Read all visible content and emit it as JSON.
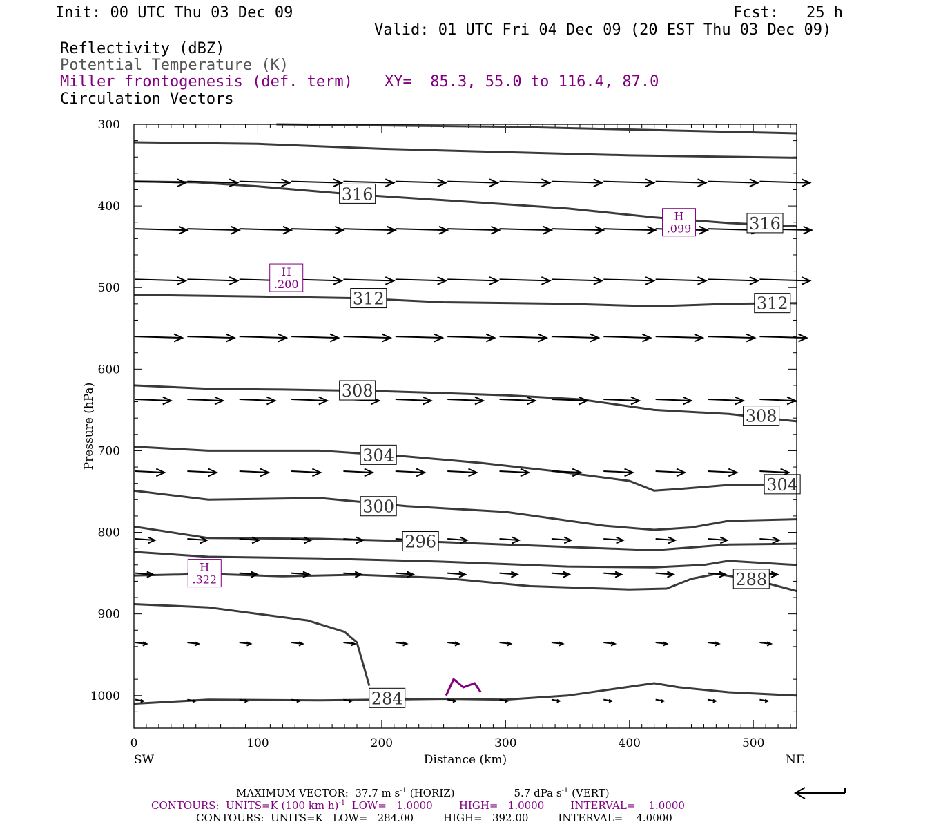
{
  "header": {
    "init": "Init: 00 UTC Thu 03 Dec 09",
    "fcst": "Fcst:   25 h",
    "valid": "Valid: 01 UTC Fri 04 Dec 09 (20 EST Thu 03 Dec 09)",
    "field1": "Reflectivity (dBZ)",
    "field2": "Potential Temperature (K)",
    "field3": "Miller frontogenesis (def. term)",
    "xy": "XY=  85.3, 55.0 to 116.4, 87.0",
    "field4": "Circulation Vectors"
  },
  "colors": {
    "theta": "#3a3a3a",
    "fronto": "#800080",
    "vectors": "#000000",
    "axis": "#000000"
  },
  "chart_data": {
    "type": "cross-section",
    "xlabel": "Distance (km)",
    "ylabel": "Pressure (hPa)",
    "xlim": [
      0,
      535
    ],
    "ylim": [
      1040,
      300
    ],
    "x_ticks": [
      0,
      100,
      200,
      300,
      400,
      500
    ],
    "y_ticks": [
      300,
      400,
      500,
      600,
      700,
      800,
      900,
      1000
    ],
    "x_end_labels": {
      "left": "SW",
      "right": "NE"
    },
    "theta_series": [
      {
        "labels": [],
        "points": [
          [
            115,
            300
          ],
          [
            300,
            303
          ],
          [
            535,
            311
          ]
        ]
      },
      {
        "labels": [],
        "points": [
          [
            0,
            322
          ],
          [
            100,
            324
          ],
          [
            200,
            330
          ],
          [
            300,
            334
          ],
          [
            400,
            338
          ],
          [
            535,
            341
          ]
        ]
      },
      {
        "labels": [
          {
            "text": "316",
            "x": 167,
            "p": 385
          },
          {
            "text": "316",
            "x": 496,
            "p": 421
          }
        ],
        "points": [
          [
            0,
            370
          ],
          [
            50,
            371
          ],
          [
            100,
            376
          ],
          [
            170,
            385
          ],
          [
            250,
            393
          ],
          [
            350,
            403
          ],
          [
            420,
            414
          ],
          [
            480,
            421
          ],
          [
            535,
            425
          ]
        ]
      },
      {
        "labels": [
          {
            "text": "312",
            "x": 176,
            "p": 513
          },
          {
            "text": "312",
            "x": 502,
            "p": 519
          }
        ],
        "points": [
          [
            0,
            509
          ],
          [
            100,
            511
          ],
          [
            180,
            513
          ],
          [
            250,
            518
          ],
          [
            350,
            520
          ],
          [
            420,
            523
          ],
          [
            480,
            520
          ],
          [
            535,
            519
          ]
        ]
      },
      {
        "labels": [
          {
            "text": "308",
            "x": 167,
            "p": 626
          },
          {
            "text": "308",
            "x": 493,
            "p": 657
          }
        ],
        "points": [
          [
            0,
            620
          ],
          [
            60,
            624
          ],
          [
            120,
            625
          ],
          [
            200,
            627
          ],
          [
            300,
            632
          ],
          [
            360,
            637
          ],
          [
            420,
            650
          ],
          [
            480,
            655
          ],
          [
            535,
            664
          ]
        ]
      },
      {
        "labels": [
          {
            "text": "304",
            "x": 184,
            "p": 705
          },
          {
            "text": "304",
            "x": 510,
            "p": 741
          }
        ],
        "points": [
          [
            0,
            695
          ],
          [
            60,
            700
          ],
          [
            150,
            700
          ],
          [
            220,
            707
          ],
          [
            280,
            715
          ],
          [
            340,
            725
          ],
          [
            400,
            737
          ],
          [
            420,
            749
          ],
          [
            440,
            747
          ],
          [
            480,
            742
          ],
          [
            535,
            741
          ]
        ]
      },
      {
        "labels": [
          {
            "text": "300",
            "x": 184,
            "p": 768
          }
        ],
        "points": [
          [
            0,
            749
          ],
          [
            60,
            760
          ],
          [
            150,
            758
          ],
          [
            220,
            768
          ],
          [
            300,
            775
          ],
          [
            380,
            792
          ],
          [
            420,
            797
          ],
          [
            450,
            794
          ],
          [
            480,
            786
          ],
          [
            535,
            784
          ]
        ]
      },
      {
        "labels": [
          {
            "text": "296",
            "x": 218,
            "p": 811
          }
        ],
        "points": [
          [
            0,
            793
          ],
          [
            60,
            807
          ],
          [
            150,
            808
          ],
          [
            250,
            812
          ],
          [
            350,
            818
          ],
          [
            420,
            822
          ],
          [
            480,
            815
          ],
          [
            535,
            814
          ]
        ]
      },
      {
        "labels": [],
        "points": [
          [
            0,
            824
          ],
          [
            60,
            830
          ],
          [
            150,
            832
          ],
          [
            250,
            836
          ],
          [
            350,
            842
          ],
          [
            420,
            843
          ],
          [
            460,
            840
          ],
          [
            480,
            835
          ],
          [
            535,
            840
          ]
        ]
      },
      {
        "labels": [
          {
            "text": "288",
            "x": 485,
            "p": 857
          }
        ],
        "points": [
          [
            0,
            853
          ],
          [
            60,
            851
          ],
          [
            120,
            854
          ],
          [
            180,
            852
          ],
          [
            250,
            856
          ],
          [
            320,
            866
          ],
          [
            400,
            870
          ],
          [
            430,
            869
          ],
          [
            450,
            857
          ],
          [
            470,
            851
          ],
          [
            500,
            858
          ],
          [
            535,
            872
          ]
        ]
      },
      {
        "labels": [],
        "points": [
          [
            0,
            888
          ],
          [
            60,
            892
          ],
          [
            140,
            908
          ],
          [
            170,
            922
          ],
          [
            180,
            935
          ],
          [
            190,
            988
          ]
        ]
      },
      {
        "labels": [
          {
            "text": "284",
            "x": 191,
            "p": 1003
          }
        ],
        "points": [
          [
            0,
            1010
          ],
          [
            60,
            1005
          ],
          [
            150,
            1006
          ],
          [
            250,
            1004
          ],
          [
            300,
            1005
          ],
          [
            350,
            1000
          ],
          [
            420,
            985
          ],
          [
            440,
            990
          ],
          [
            480,
            996
          ],
          [
            535,
            1000
          ]
        ]
      }
    ],
    "fronto_maxima": [
      {
        "label": "H",
        "value": ".099",
        "x": 440,
        "p": 420
      },
      {
        "label": "H",
        "value": ".200",
        "x": 123,
        "p": 488
      },
      {
        "label": "H",
        "value": ".322",
        "x": 57,
        "p": 850
      }
    ],
    "fronto_contour": [
      [
        252,
        1000
      ],
      [
        258,
        980
      ],
      [
        266,
        990
      ],
      [
        275,
        985
      ],
      [
        280,
        996
      ]
    ],
    "vector_rows": [
      {
        "p": 370,
        "u": 31.0,
        "w": 0.0
      },
      {
        "p": 428,
        "u": 32.0,
        "w": 0.0
      },
      {
        "p": 490,
        "u": 31.0,
        "w": 0.0
      },
      {
        "p": 560,
        "u": 29.0,
        "w": 0.0
      },
      {
        "p": 637,
        "u": 22.0,
        "w": 0.0
      },
      {
        "p": 725,
        "u": 18.0,
        "w": 0.0
      },
      {
        "p": 808,
        "u": 12.0,
        "w": 0.0
      },
      {
        "p": 850,
        "u": 11.0,
        "w": 0.0
      },
      {
        "p": 935,
        "u": 7.0,
        "w": 0.0
      },
      {
        "p": 1005,
        "u": 5.0,
        "w": 0.0
      }
    ],
    "vector_columns_x": [
      0,
      42,
      84,
      126,
      168,
      210,
      252,
      294,
      336,
      378,
      420,
      462,
      504
    ]
  },
  "footer": {
    "max_vector": "MAXIMUM VECTOR:  37.7 m s",
    "max_vector_exp": "-1",
    "max_vector_horiz": " (HORIZ)",
    "max_vector_vert": "5.7 dPa s",
    "max_vector_vert_exp": "-1",
    "max_vector_vert_tail": " (VERT)",
    "contours1_a": "CONTOURS:  UNITS=K (100 km h)",
    "contours1_exp": "-1",
    "contours1_b": "  LOW=   1.0000        HIGH=   1.0000        INTERVAL=    1.0000",
    "contours2": "CONTOURS:  UNITS=K   LOW=   284.00         HIGH=   392.00         INTERVAL=    4.0000"
  }
}
